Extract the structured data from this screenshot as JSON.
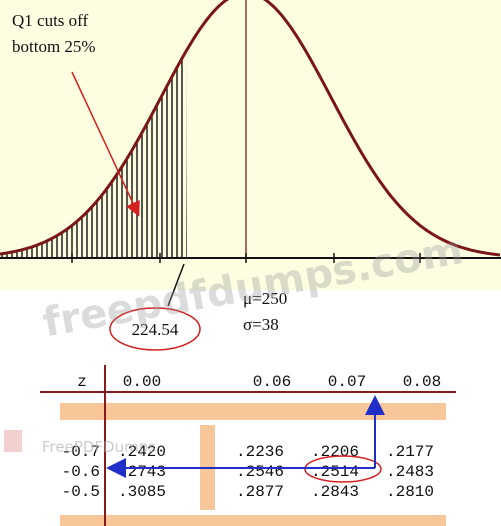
{
  "annotation": {
    "lines": [
      "Q1 cuts off",
      "bottom 25%"
    ]
  },
  "cutoff": "224.54",
  "mu": "μ=250",
  "sigma": "σ=38",
  "table": {
    "header": [
      "z",
      "0.00",
      "0.06",
      "0.07",
      "0.08"
    ],
    "rows": [
      [
        "-0.7",
        ".2420",
        ".2236",
        ".2206",
        ".2177"
      ],
      [
        "-0.6",
        ".2743",
        ".2546",
        ".2514",
        ".2483"
      ],
      [
        "-0.5",
        ".3085",
        ".2877",
        ".2843",
        ".2810"
      ]
    ]
  },
  "watermarks": [
    "freepdfdumps.com",
    "FreePDFDumps"
  ]
}
